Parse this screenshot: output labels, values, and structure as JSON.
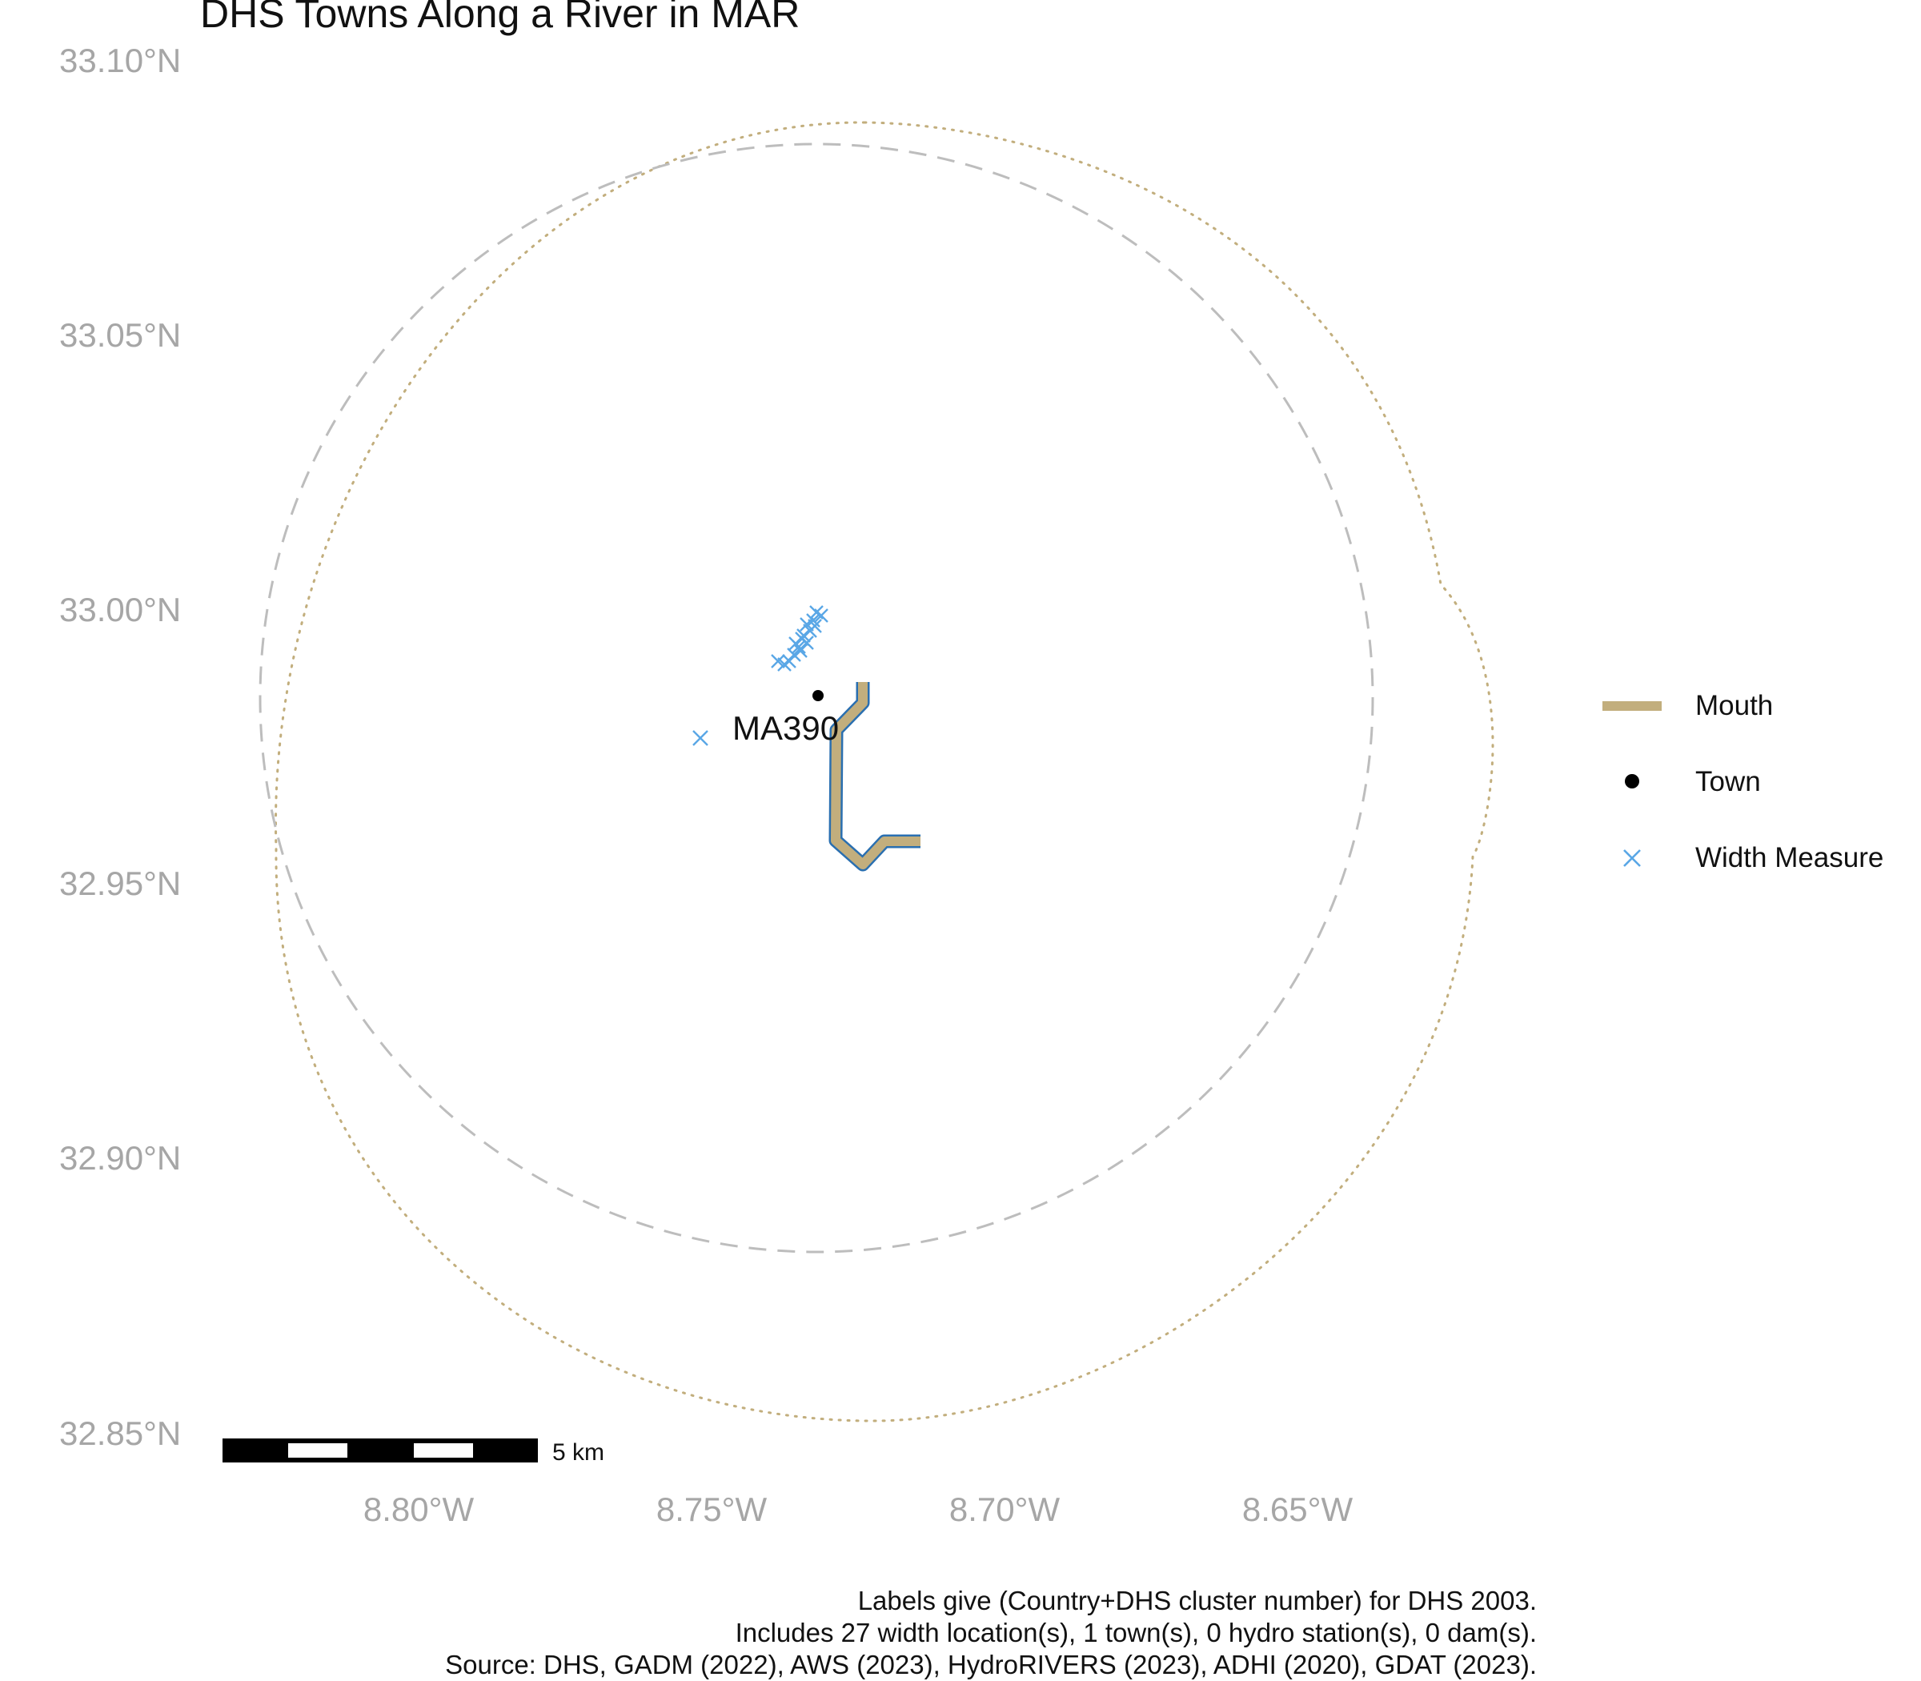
{
  "title": "DHS Towns Along a River in MAR",
  "map": {
    "y_ticks": [
      "33.10°N",
      "33.05°N",
      "33.00°N",
      "32.95°N",
      "32.90°N",
      "32.85°N"
    ],
    "x_ticks": [
      "8.80°W",
      "8.75°W",
      "8.70°W",
      "8.65°W"
    ],
    "town_label": "MA390",
    "scale_bar_label": "5 km",
    "colors": {
      "mouth": "#c2ae7d",
      "river_outline": "#2a6fb0",
      "town": "#000000",
      "width_measure": "#5aa7e6",
      "dashed_circle": "#bdbdbd",
      "dotted_circle": "#c2ae7d",
      "tick_text": "#a6a6a6"
    }
  },
  "legend": {
    "items": [
      {
        "label": "Mouth",
        "icon": "line-swatch"
      },
      {
        "label": "Town",
        "icon": "dot-marker"
      },
      {
        "label": "Width Measure",
        "icon": "x-marker"
      }
    ]
  },
  "caption": {
    "line1": "Labels give (Country+DHS cluster number) for DHS 2003.",
    "line2": "Includes 27 width location(s), 1 town(s), 0 hydro station(s), 0 dam(s).",
    "line3": "Source: DHS, GADM (2022), AWS (2023), HydroRIVERS (2023), ADHI (2020), GDAT (2023)."
  }
}
